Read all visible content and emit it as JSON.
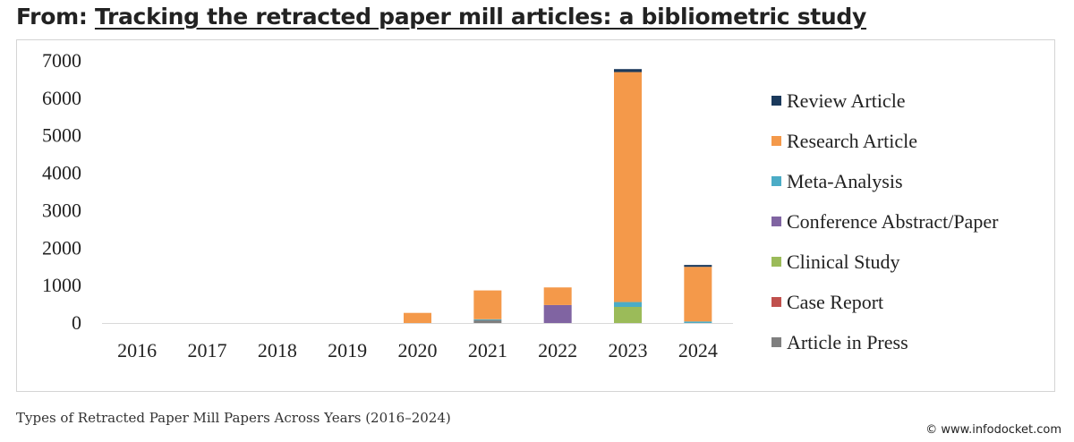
{
  "header": {
    "prefix": "From:",
    "article_title": "Tracking the retracted paper mill articles: a bibliometric study"
  },
  "caption": "Types of Retracted Paper Mill Papers Across Years (2016–2024)",
  "source": "© www.infodocket.com",
  "colors": {
    "Review Article": "#1b3a5c",
    "Research Article": "#f4994a",
    "Meta-Analysis": "#4bacc6",
    "Conference Abstract/Paper": "#8064a2",
    "Clinical Study": "#9bbb59",
    "Case Report": "#c0504d",
    "Article in Press": "#7f7f7f"
  },
  "chart_data": {
    "type": "bar",
    "stacked": true,
    "categories": [
      "2016",
      "2017",
      "2018",
      "2019",
      "2020",
      "2021",
      "2022",
      "2023",
      "2024"
    ],
    "ylim": [
      0,
      7000
    ],
    "yticks": [
      "0",
      "1000",
      "2000",
      "3000",
      "4000",
      "5000",
      "6000",
      "7000"
    ],
    "legend_position": "right",
    "legend": [
      "Review Article",
      "Research Article",
      "Meta-Analysis",
      "Conference Abstract/Paper",
      "Clinical Study",
      "Case Report",
      "Article in Press"
    ],
    "series": [
      {
        "name": "Article in Press",
        "values": [
          0,
          0,
          0,
          0,
          0,
          80,
          0,
          0,
          0
        ]
      },
      {
        "name": "Case Report",
        "values": [
          0,
          0,
          0,
          0,
          0,
          0,
          0,
          0,
          0
        ]
      },
      {
        "name": "Clinical Study",
        "values": [
          0,
          0,
          0,
          0,
          0,
          0,
          0,
          430,
          0
        ]
      },
      {
        "name": "Conference Abstract/Paper",
        "values": [
          0,
          0,
          0,
          0,
          0,
          0,
          480,
          0,
          0
        ]
      },
      {
        "name": "Meta-Analysis",
        "values": [
          0,
          0,
          0,
          0,
          0,
          20,
          0,
          130,
          40
        ]
      },
      {
        "name": "Research Article",
        "values": [
          0,
          0,
          0,
          0,
          270,
          770,
          470,
          6140,
          1460
        ]
      },
      {
        "name": "Review Article",
        "values": [
          0,
          0,
          0,
          0,
          0,
          0,
          0,
          80,
          50
        ]
      }
    ]
  }
}
